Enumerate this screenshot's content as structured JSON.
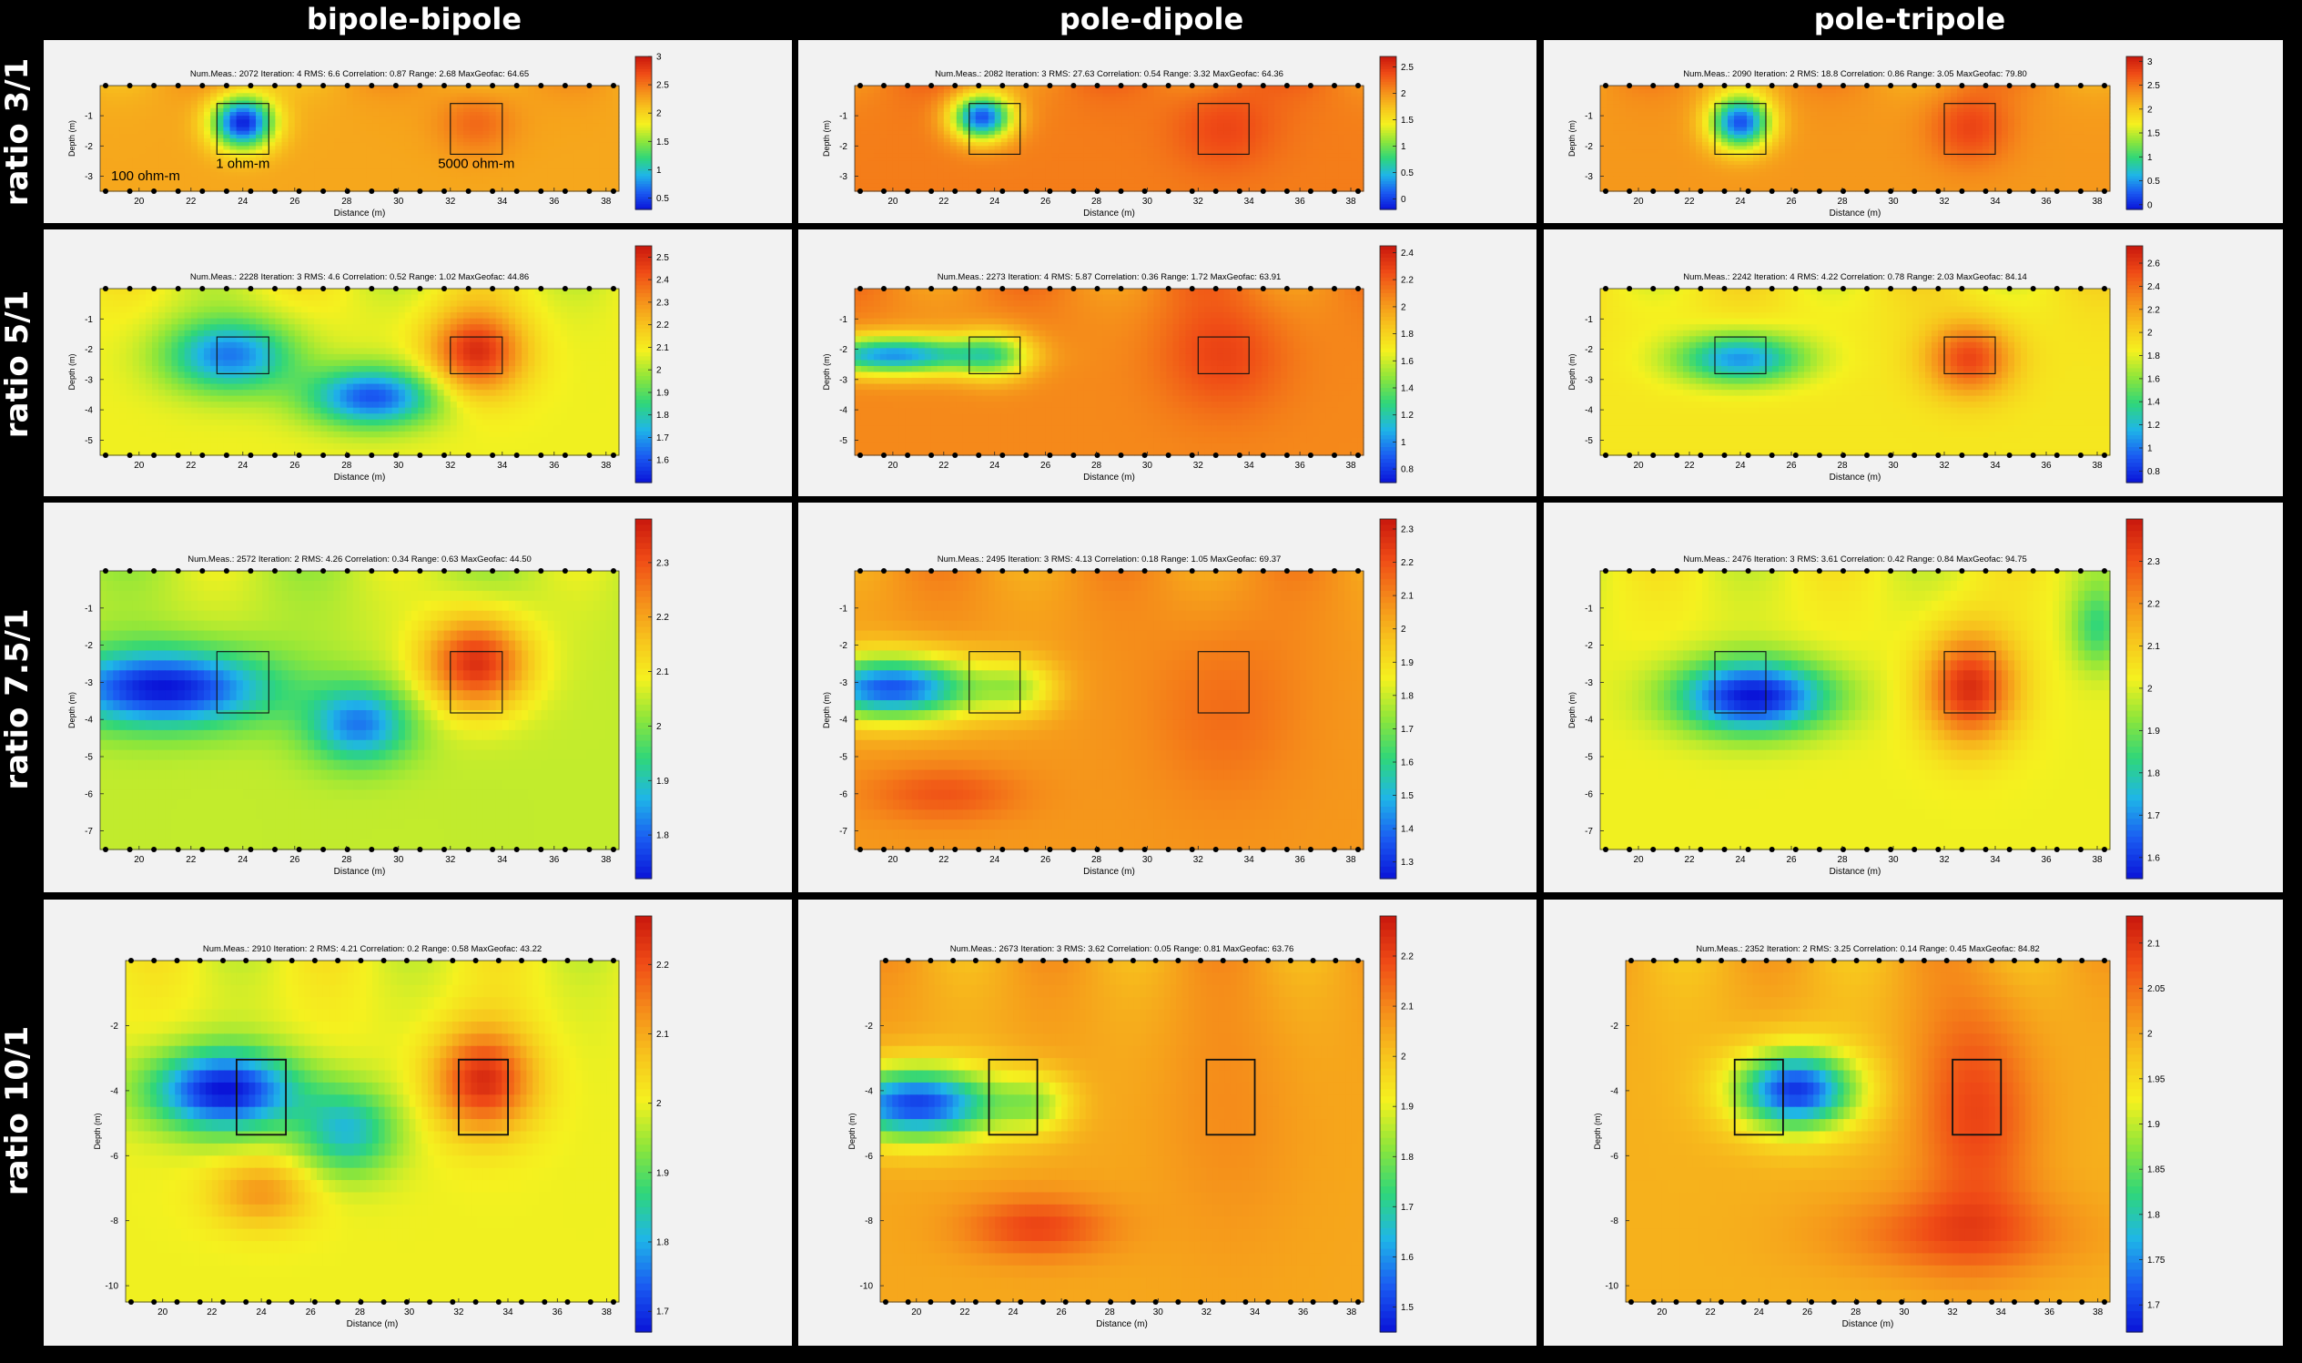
{
  "columns": [
    "bipole-bipole",
    "pole-dipole",
    "pole-tripole"
  ],
  "rows": [
    "ratio 3/1",
    "ratio 5/1",
    "ratio 7.5/1",
    "ratio 10/1"
  ],
  "xlabel": "Distance (m)",
  "ylabel": "Depth (m)",
  "x_ticks": [
    20,
    22,
    24,
    26,
    28,
    30,
    32,
    34,
    36,
    38
  ],
  "xlim": [
    18.5,
    38.5
  ],
  "targets": [
    {
      "x0": 23,
      "x1": 25,
      "depth_top_ratio": 0.4,
      "label": "1 ohm-m"
    },
    {
      "x0": 32,
      "x1": 34,
      "depth_top_ratio": 0.4,
      "label": "5000 ohm-m"
    }
  ],
  "background_label": "100 ohm-m",
  "colors": {
    "scale": [
      "#0a14d8",
      "#1a5cf2",
      "#1fb5e8",
      "#2fd67a",
      "#8ee63a",
      "#f5f11f",
      "#f7c21d",
      "#f58a1a",
      "#ef4a16",
      "#c8170d"
    ],
    "panel_bg": "#f2f2f2",
    "background_black": "#000000"
  },
  "chart_data": [
    {
      "type": "heatmap",
      "row": 0,
      "col": 0,
      "title": "Num.Meas.: 2072   Iteration: 4   RMS: 6.6   Correlation: 0.87   Range: 2.68   MaxGeofac: 64.65",
      "xlabel": "Distance (m)",
      "ylabel": "Depth (m)",
      "y_ticks": [
        "-1",
        "-2",
        "-3"
      ],
      "depth_max": 3.5,
      "colorbar_ticks": [
        "3",
        "2.5",
        "2",
        "1.5",
        "1",
        "0.5"
      ],
      "colorbar_range": [
        0.3,
        3.0
      ],
      "base_value": 0.72,
      "anomalies": [
        {
          "x": 24,
          "d": 0.35,
          "sx": 1.2,
          "sd": 0.25,
          "amp": -0.7
        },
        {
          "x": 33,
          "d": 0.35,
          "sx": 1.5,
          "sd": 0.3,
          "amp": 0.12
        }
      ]
    },
    {
      "type": "heatmap",
      "row": 0,
      "col": 1,
      "title": "Num.Meas.: 2082   Iteration: 3   RMS: 27.63   Correlation: 0.54   Range: 3.32   MaxGeofac: 64.36",
      "xlabel": "Distance (m)",
      "ylabel": "Depth (m)",
      "y_ticks": [
        "-1",
        "-2",
        "-3"
      ],
      "depth_max": 3.5,
      "colorbar_ticks": [
        "2.5",
        "2",
        "1.5",
        "1",
        "0.5",
        "0"
      ],
      "colorbar_range": [
        -0.2,
        2.7
      ],
      "base_value": 0.8,
      "anomalies": [
        {
          "x": 23.5,
          "d": 0.3,
          "sx": 1.2,
          "sd": 0.22,
          "amp": -0.7
        },
        {
          "x": 33,
          "d": 0.4,
          "sx": 2.0,
          "sd": 0.4,
          "amp": 0.1
        }
      ]
    },
    {
      "type": "heatmap",
      "row": 0,
      "col": 2,
      "title": "Num.Meas.: 2090   Iteration: 2   RMS: 18.8   Correlation: 0.86   Range: 3.05   MaxGeofac: 79.80",
      "xlabel": "Distance (m)",
      "ylabel": "Depth (m)",
      "y_ticks": [
        "-1",
        "-2",
        "-3"
      ],
      "depth_max": 3.5,
      "colorbar_ticks": [
        "3",
        "2.5",
        "2",
        "1.5",
        "1",
        "0.5",
        "0"
      ],
      "colorbar_range": [
        -0.1,
        3.1
      ],
      "base_value": 0.75,
      "anomalies": [
        {
          "x": 24,
          "d": 0.35,
          "sx": 1.2,
          "sd": 0.25,
          "amp": -0.65
        },
        {
          "x": 33,
          "d": 0.4,
          "sx": 1.6,
          "sd": 0.35,
          "amp": 0.15
        }
      ]
    },
    {
      "type": "heatmap",
      "row": 1,
      "col": 0,
      "title": "Num.Meas.: 2228   Iteration: 3   RMS: 4.6   Correlation: 0.52   Range: 1.02   MaxGeofac: 44.86",
      "xlabel": "Distance (m)",
      "ylabel": "Depth (m)",
      "y_ticks": [
        "-1",
        "-2",
        "-3",
        "-4",
        "-5"
      ],
      "depth_max": 5.5,
      "colorbar_ticks": [
        "2.5",
        "2.4",
        "2.3",
        "2.2",
        "2.1",
        "2",
        "1.9",
        "1.8",
        "1.7",
        "1.6"
      ],
      "colorbar_range": [
        1.5,
        2.55
      ],
      "base_value": 0.55,
      "anomalies": [
        {
          "x": 23.5,
          "d": 0.4,
          "sx": 2.5,
          "sd": 0.22,
          "amp": -0.4
        },
        {
          "x": 29,
          "d": 0.65,
          "sx": 2.5,
          "sd": 0.18,
          "amp": -0.45
        },
        {
          "x": 33,
          "d": 0.38,
          "sx": 1.8,
          "sd": 0.25,
          "amp": 0.4
        }
      ]
    },
    {
      "type": "heatmap",
      "row": 1,
      "col": 1,
      "title": "Num.Meas.: 2273   Iteration: 4   RMS: 5.87   Correlation: 0.36   Range: 1.72   MaxGeofac: 63.91",
      "xlabel": "Distance (m)",
      "ylabel": "Depth (m)",
      "y_ticks": [
        "-1",
        "-2",
        "-3",
        "-4",
        "-5"
      ],
      "depth_max": 5.5,
      "colorbar_ticks": [
        "2.4",
        "2.2",
        "2",
        "1.8",
        "1.6",
        "1.4",
        "1.2",
        "1",
        "0.8"
      ],
      "colorbar_range": [
        0.7,
        2.45
      ],
      "base_value": 0.78,
      "anomalies": [
        {
          "x": 20,
          "d": 0.4,
          "sx": 3.5,
          "sd": 0.12,
          "amp": -0.6
        },
        {
          "x": 24,
          "d": 0.4,
          "sx": 1.5,
          "sd": 0.15,
          "amp": -0.3
        },
        {
          "x": 33,
          "d": 0.4,
          "sx": 2.5,
          "sd": 0.35,
          "amp": 0.12
        }
      ]
    },
    {
      "type": "heatmap",
      "row": 1,
      "col": 2,
      "title": "Num.Meas.: 2242   Iteration: 4   RMS: 4.22   Correlation: 0.78   Range: 2.03   MaxGeofac: 84.14",
      "xlabel": "Distance (m)",
      "ylabel": "Depth (m)",
      "y_ticks": [
        "-1",
        "-2",
        "-3",
        "-4",
        "-5"
      ],
      "depth_max": 5.5,
      "colorbar_ticks": [
        "2.6",
        "2.4",
        "2.2",
        "2",
        "1.8",
        "1.6",
        "1.4",
        "1.2",
        "1",
        "0.8"
      ],
      "colorbar_range": [
        0.7,
        2.75
      ],
      "base_value": 0.58,
      "anomalies": [
        {
          "x": 24,
          "d": 0.42,
          "sx": 2.5,
          "sd": 0.15,
          "amp": -0.4
        },
        {
          "x": 33,
          "d": 0.42,
          "sx": 1.7,
          "sd": 0.22,
          "amp": 0.32
        }
      ]
    },
    {
      "type": "heatmap",
      "row": 2,
      "col": 0,
      "title": "Num.Meas.: 2572   Iteration: 2   RMS: 4.26   Correlation: 0.34   Range: 0.63   MaxGeofac: 44.50",
      "xlabel": "Distance (m)",
      "ylabel": "Depth (m)",
      "y_ticks": [
        "-1",
        "-2",
        "-3",
        "-4",
        "-5",
        "-6",
        "-7"
      ],
      "depth_max": 7.5,
      "colorbar_ticks": [
        "2.3",
        "2.2",
        "2.1",
        "2",
        "1.9",
        "1.8"
      ],
      "colorbar_range": [
        1.72,
        2.38
      ],
      "base_value": 0.5,
      "anomalies": [
        {
          "x": 21,
          "d": 0.42,
          "sx": 4,
          "sd": 0.14,
          "amp": -0.5
        },
        {
          "x": 28.5,
          "d": 0.55,
          "sx": 2,
          "sd": 0.14,
          "amp": -0.35
        },
        {
          "x": 33,
          "d": 0.33,
          "sx": 2,
          "sd": 0.17,
          "amp": 0.45
        }
      ]
    },
    {
      "type": "heatmap",
      "row": 2,
      "col": 1,
      "title": "Num.Meas.: 2495   Iteration: 3   RMS: 4.13   Correlation: 0.18   Range: 1.05   MaxGeofac: 69.37",
      "xlabel": "Distance (m)",
      "ylabel": "Depth (m)",
      "y_ticks": [
        "-1",
        "-2",
        "-3",
        "-4",
        "-5",
        "-6",
        "-7"
      ],
      "depth_max": 7.5,
      "colorbar_ticks": [
        "2.3",
        "2.2",
        "2.1",
        "2",
        "1.9",
        "1.8",
        "1.7",
        "1.6",
        "1.5",
        "1.4",
        "1.3"
      ],
      "colorbar_range": [
        1.25,
        2.33
      ],
      "base_value": 0.75,
      "anomalies": [
        {
          "x": 20,
          "d": 0.42,
          "sx": 3.5,
          "sd": 0.12,
          "amp": -0.65
        },
        {
          "x": 25,
          "d": 0.42,
          "sx": 1.5,
          "sd": 0.1,
          "amp": -0.2
        },
        {
          "x": 22,
          "d": 0.8,
          "sx": 3,
          "sd": 0.1,
          "amp": 0.12
        },
        {
          "x": 33,
          "d": 0.5,
          "sx": 3,
          "sd": 0.35,
          "amp": 0.08
        }
      ]
    },
    {
      "type": "heatmap",
      "row": 2,
      "col": 2,
      "title": "Num.Meas.: 2476   Iteration: 3   RMS: 3.61   Correlation: 0.42   Range: 0.84   MaxGeofac: 94.75",
      "xlabel": "Distance (m)",
      "ylabel": "Depth (m)",
      "y_ticks": [
        "-1",
        "-2",
        "-3",
        "-4",
        "-5",
        "-6",
        "-7"
      ],
      "depth_max": 7.5,
      "colorbar_ticks": [
        "2.3",
        "2.2",
        "2.1",
        "2",
        "1.9",
        "1.8",
        "1.7",
        "1.6"
      ],
      "colorbar_range": [
        1.55,
        2.4
      ],
      "base_value": 0.55,
      "anomalies": [
        {
          "x": 24.5,
          "d": 0.45,
          "sx": 3,
          "sd": 0.13,
          "amp": -0.55
        },
        {
          "x": 33,
          "d": 0.42,
          "sx": 1.8,
          "sd": 0.2,
          "amp": 0.4
        },
        {
          "x": 38,
          "d": 0.2,
          "sx": 1,
          "sd": 0.15,
          "amp": -0.2
        }
      ]
    },
    {
      "type": "heatmap",
      "row": 3,
      "col": 0,
      "title": "Num.Meas.: 2910   Iteration: 2   RMS: 4.21   Correlation: 0.2   Range: 0.58   MaxGeofac: 43.22",
      "xlabel": "Distance (m)",
      "ylabel": "Depth (m)",
      "y_ticks": [
        "-2",
        "-4",
        "-6",
        "-8",
        "-10"
      ],
      "depth_max": 10.5,
      "colorbar_ticks": [
        "2.2",
        "2.1",
        "2",
        "1.9",
        "1.8",
        "1.7"
      ],
      "colorbar_range": [
        1.67,
        2.27
      ],
      "base_value": 0.55,
      "anomalies": [
        {
          "x": 22.5,
          "d": 0.38,
          "sx": 3,
          "sd": 0.12,
          "amp": -0.55
        },
        {
          "x": 27.5,
          "d": 0.5,
          "sx": 2,
          "sd": 0.13,
          "amp": -0.3
        },
        {
          "x": 33,
          "d": 0.35,
          "sx": 2,
          "sd": 0.15,
          "amp": 0.4
        },
        {
          "x": 24,
          "d": 0.68,
          "sx": 2,
          "sd": 0.1,
          "amp": 0.2
        }
      ]
    },
    {
      "type": "heatmap",
      "row": 3,
      "col": 1,
      "title": "Num.Meas.: 2673   Iteration: 3   RMS: 3.62   Correlation: 0.05   Range: 0.81   MaxGeofac: 63.76",
      "xlabel": "Distance (m)",
      "ylabel": "Depth (m)",
      "y_ticks": [
        "-2",
        "-4",
        "-6",
        "-8",
        "-10"
      ],
      "depth_max": 10.5,
      "colorbar_ticks": [
        "2.2",
        "2.1",
        "2",
        "1.9",
        "1.8",
        "1.7",
        "1.6",
        "1.5"
      ],
      "colorbar_range": [
        1.45,
        2.28
      ],
      "base_value": 0.72,
      "anomalies": [
        {
          "x": 20,
          "d": 0.42,
          "sx": 3.5,
          "sd": 0.11,
          "amp": -0.65
        },
        {
          "x": 25,
          "d": 0.42,
          "sx": 1.5,
          "sd": 0.09,
          "amp": -0.2
        },
        {
          "x": 25,
          "d": 0.78,
          "sx": 3,
          "sd": 0.09,
          "amp": 0.18
        },
        {
          "x": 33,
          "d": 0.45,
          "sx": 3,
          "sd": 0.4,
          "amp": 0.05
        }
      ]
    },
    {
      "type": "heatmap",
      "row": 3,
      "col": 2,
      "title": "Num.Meas.: 2352   Iteration: 2   RMS: 3.25   Correlation: 0.14   Range: 0.45   MaxGeofac: 84.82",
      "xlabel": "Distance (m)",
      "ylabel": "Depth (m)",
      "y_ticks": [
        "-2",
        "-4",
        "-6",
        "-8",
        "-10"
      ],
      "depth_max": 10.5,
      "colorbar_ticks": [
        "2.1",
        "2.05",
        "2",
        "1.95",
        "1.9",
        "1.85",
        "1.8",
        "1.75",
        "1.7"
      ],
      "colorbar_range": [
        1.67,
        2.13
      ],
      "base_value": 0.7,
      "anomalies": [
        {
          "x": 25.5,
          "d": 0.38,
          "sx": 2.5,
          "sd": 0.12,
          "amp": -0.65
        },
        {
          "x": 33,
          "d": 0.45,
          "sx": 2.5,
          "sd": 0.35,
          "amp": 0.2
        },
        {
          "x": 32,
          "d": 0.8,
          "sx": 5,
          "sd": 0.12,
          "amp": 0.15
        }
      ]
    }
  ]
}
